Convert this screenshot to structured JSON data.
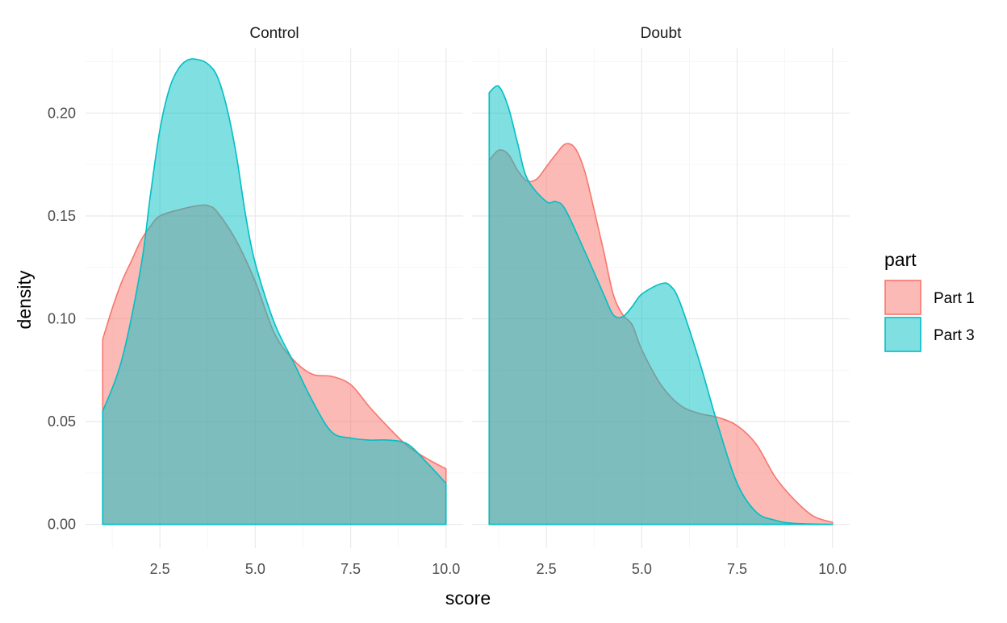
{
  "chart_data": {
    "type": "area",
    "subtype": "faceted-density",
    "xlabel": "score",
    "ylabel": "density",
    "xlim": [
      1,
      10
    ],
    "ylim": [
      0,
      0.225
    ],
    "x_ticks": [
      2.5,
      5.0,
      7.5,
      10.0
    ],
    "x_tick_labels": [
      "2.5",
      "5.0",
      "7.5",
      "10.0"
    ],
    "y_ticks": [
      0,
      0.05,
      0.1,
      0.15,
      0.2
    ],
    "y_tick_labels": [
      "0.00",
      "0.05",
      "0.10",
      "0.15",
      "0.20"
    ],
    "grid": true,
    "legend": {
      "title": "part",
      "placement": "right",
      "entries": [
        {
          "label": "Part 1",
          "fill": "#F8766D",
          "stroke": "#F8766D"
        },
        {
          "label": "Part 3",
          "fill": "#00BFC4",
          "stroke": "#00BFC4"
        }
      ]
    },
    "panels": [
      {
        "label": "Control",
        "series": [
          {
            "name": "Part 1",
            "color": "#F8766D",
            "points": [
              [
                1.0,
                0.09
              ],
              [
                1.25,
                0.105
              ],
              [
                1.5,
                0.118
              ],
              [
                1.75,
                0.128
              ],
              [
                2.0,
                0.138
              ],
              [
                2.25,
                0.145
              ],
              [
                2.5,
                0.15
              ],
              [
                3.0,
                0.153
              ],
              [
                3.5,
                0.155
              ],
              [
                3.75,
                0.155
              ],
              [
                4.0,
                0.152
              ],
              [
                4.5,
                0.138
              ],
              [
                5.0,
                0.118
              ],
              [
                5.5,
                0.093
              ],
              [
                6.0,
                0.08
              ],
              [
                6.5,
                0.073
              ],
              [
                7.0,
                0.072
              ],
              [
                7.5,
                0.068
              ],
              [
                8.0,
                0.057
              ],
              [
                8.5,
                0.047
              ],
              [
                9.0,
                0.038
              ],
              [
                9.5,
                0.032
              ],
              [
                10.0,
                0.027
              ]
            ]
          },
          {
            "name": "Part 3",
            "color": "#00BFC4",
            "points": [
              [
                1.0,
                0.055
              ],
              [
                1.5,
                0.08
              ],
              [
                2.0,
                0.125
              ],
              [
                2.25,
                0.16
              ],
              [
                2.5,
                0.192
              ],
              [
                2.75,
                0.212
              ],
              [
                3.0,
                0.222
              ],
              [
                3.25,
                0.226
              ],
              [
                3.5,
                0.226
              ],
              [
                3.75,
                0.224
              ],
              [
                4.0,
                0.218
              ],
              [
                4.25,
                0.203
              ],
              [
                4.5,
                0.18
              ],
              [
                4.75,
                0.15
              ],
              [
                5.0,
                0.127
              ],
              [
                5.5,
                0.098
              ],
              [
                6.0,
                0.079
              ],
              [
                6.5,
                0.06
              ],
              [
                7.0,
                0.045
              ],
              [
                7.5,
                0.042
              ],
              [
                8.0,
                0.041
              ],
              [
                8.5,
                0.041
              ],
              [
                9.0,
                0.039
              ],
              [
                9.5,
                0.03
              ],
              [
                10.0,
                0.02
              ]
            ]
          }
        ]
      },
      {
        "label": "Doubt",
        "series": [
          {
            "name": "Part 1",
            "color": "#F8766D",
            "points": [
              [
                1.0,
                0.177
              ],
              [
                1.25,
                0.182
              ],
              [
                1.5,
                0.18
              ],
              [
                1.75,
                0.172
              ],
              [
                2.0,
                0.167
              ],
              [
                2.25,
                0.168
              ],
              [
                2.5,
                0.174
              ],
              [
                2.75,
                0.18
              ],
              [
                3.0,
                0.185
              ],
              [
                3.25,
                0.183
              ],
              [
                3.5,
                0.172
              ],
              [
                3.75,
                0.153
              ],
              [
                4.0,
                0.133
              ],
              [
                4.25,
                0.112
              ],
              [
                4.5,
                0.102
              ],
              [
                4.75,
                0.097
              ],
              [
                5.0,
                0.085
              ],
              [
                5.5,
                0.068
              ],
              [
                6.0,
                0.058
              ],
              [
                6.5,
                0.054
              ],
              [
                7.0,
                0.052
              ],
              [
                7.5,
                0.048
              ],
              [
                8.0,
                0.039
              ],
              [
                8.5,
                0.023
              ],
              [
                9.0,
                0.012
              ],
              [
                9.5,
                0.004
              ],
              [
                10.0,
                0.001
              ]
            ]
          },
          {
            "name": "Part 3",
            "color": "#00BFC4",
            "points": [
              [
                1.0,
                0.21
              ],
              [
                1.25,
                0.213
              ],
              [
                1.5,
                0.203
              ],
              [
                1.75,
                0.185
              ],
              [
                2.0,
                0.168
              ],
              [
                2.5,
                0.157
              ],
              [
                2.75,
                0.157
              ],
              [
                3.0,
                0.153
              ],
              [
                3.5,
                0.133
              ],
              [
                4.0,
                0.112
              ],
              [
                4.25,
                0.102
              ],
              [
                4.5,
                0.101
              ],
              [
                4.75,
                0.106
              ],
              [
                5.0,
                0.112
              ],
              [
                5.5,
                0.117
              ],
              [
                5.75,
                0.116
              ],
              [
                6.0,
                0.108
              ],
              [
                6.5,
                0.08
              ],
              [
                7.0,
                0.048
              ],
              [
                7.5,
                0.02
              ],
              [
                8.0,
                0.006
              ],
              [
                8.5,
                0.002
              ],
              [
                9.0,
                0.0005
              ],
              [
                10.0,
                0.0
              ]
            ]
          }
        ]
      }
    ]
  }
}
